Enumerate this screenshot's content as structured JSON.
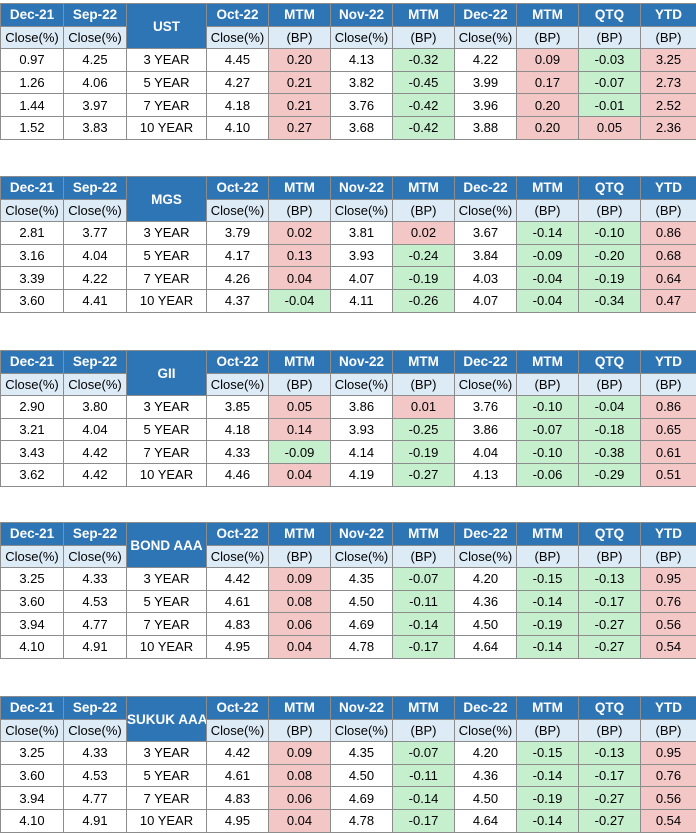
{
  "headers": {
    "top": [
      "Dec-21",
      "Sep-22",
      "Oct-22",
      "MTM",
      "Nov-22",
      "MTM",
      "Dec-22",
      "MTM",
      "QTQ",
      "YTD"
    ],
    "sub": [
      "Close(%)",
      "Close(%)",
      "Close(%)",
      "(BP)",
      "Close(%)",
      "(BP)",
      "Close(%)",
      "(BP)",
      "(BP)",
      "(BP)"
    ]
  },
  "colors": {
    "header_blue": "#2e75b6",
    "subheader_blue": "#ddebf7",
    "rise_red": "#f4c7c7",
    "fall_green": "#c6efce"
  },
  "tables": [
    {
      "label": "UST",
      "rows": [
        {
          "dec21": "0.97",
          "sep22": "4.25",
          "tenor": "3 YEAR",
          "oct22": "4.45",
          "mtm1": "0.20",
          "nov22": "4.13",
          "mtm2": "-0.32",
          "dec22": "4.22",
          "mtm3": "0.09",
          "qtq": "-0.03",
          "ytd": "3.25"
        },
        {
          "dec21": "1.26",
          "sep22": "4.06",
          "tenor": "5 YEAR",
          "oct22": "4.27",
          "mtm1": "0.21",
          "nov22": "3.82",
          "mtm2": "-0.45",
          "dec22": "3.99",
          "mtm3": "0.17",
          "qtq": "-0.07",
          "ytd": "2.73"
        },
        {
          "dec21": "1.44",
          "sep22": "3.97",
          "tenor": "7 YEAR",
          "oct22": "4.18",
          "mtm1": "0.21",
          "nov22": "3.76",
          "mtm2": "-0.42",
          "dec22": "3.96",
          "mtm3": "0.20",
          "qtq": "-0.01",
          "ytd": "2.52"
        },
        {
          "dec21": "1.52",
          "sep22": "3.83",
          "tenor": "10 YEAR",
          "oct22": "4.10",
          "mtm1": "0.27",
          "nov22": "3.68",
          "mtm2": "-0.42",
          "dec22": "3.88",
          "mtm3": "0.20",
          "qtq": "0.05",
          "ytd": "2.36"
        }
      ]
    },
    {
      "label": "MGS",
      "rows": [
        {
          "dec21": "2.81",
          "sep22": "3.77",
          "tenor": "3 YEAR",
          "oct22": "3.79",
          "mtm1": "0.02",
          "nov22": "3.81",
          "mtm2": "0.02",
          "dec22": "3.67",
          "mtm3": "-0.14",
          "qtq": "-0.10",
          "ytd": "0.86"
        },
        {
          "dec21": "3.16",
          "sep22": "4.04",
          "tenor": "5 YEAR",
          "oct22": "4.17",
          "mtm1": "0.13",
          "nov22": "3.93",
          "mtm2": "-0.24",
          "dec22": "3.84",
          "mtm3": "-0.09",
          "qtq": "-0.20",
          "ytd": "0.68"
        },
        {
          "dec21": "3.39",
          "sep22": "4.22",
          "tenor": "7 YEAR",
          "oct22": "4.26",
          "mtm1": "0.04",
          "nov22": "4.07",
          "mtm2": "-0.19",
          "dec22": "4.03",
          "mtm3": "-0.04",
          "qtq": "-0.19",
          "ytd": "0.64"
        },
        {
          "dec21": "3.60",
          "sep22": "4.41",
          "tenor": "10 YEAR",
          "oct22": "4.37",
          "mtm1": "-0.04",
          "nov22": "4.11",
          "mtm2": "-0.26",
          "dec22": "4.07",
          "mtm3": "-0.04",
          "qtq": "-0.34",
          "ytd": "0.47"
        }
      ]
    },
    {
      "label": "GII",
      "rows": [
        {
          "dec21": "2.90",
          "sep22": "3.80",
          "tenor": "3 YEAR",
          "oct22": "3.85",
          "mtm1": "0.05",
          "nov22": "3.86",
          "mtm2": "0.01",
          "dec22": "3.76",
          "mtm3": "-0.10",
          "qtq": "-0.04",
          "ytd": "0.86"
        },
        {
          "dec21": "3.21",
          "sep22": "4.04",
          "tenor": "5 YEAR",
          "oct22": "4.18",
          "mtm1": "0.14",
          "nov22": "3.93",
          "mtm2": "-0.25",
          "dec22": "3.86",
          "mtm3": "-0.07",
          "qtq": "-0.18",
          "ytd": "0.65"
        },
        {
          "dec21": "3.43",
          "sep22": "4.42",
          "tenor": "7 YEAR",
          "oct22": "4.33",
          "mtm1": "-0.09",
          "nov22": "4.14",
          "mtm2": "-0.19",
          "dec22": "4.04",
          "mtm3": "-0.10",
          "qtq": "-0.38",
          "ytd": "0.61"
        },
        {
          "dec21": "3.62",
          "sep22": "4.42",
          "tenor": "10 YEAR",
          "oct22": "4.46",
          "mtm1": "0.04",
          "nov22": "4.19",
          "mtm2": "-0.27",
          "dec22": "4.13",
          "mtm3": "-0.06",
          "qtq": "-0.29",
          "ytd": "0.51"
        }
      ]
    },
    {
      "label": "BOND AAA",
      "rows": [
        {
          "dec21": "3.25",
          "sep22": "4.33",
          "tenor": "3 YEAR",
          "oct22": "4.42",
          "mtm1": "0.09",
          "nov22": "4.35",
          "mtm2": "-0.07",
          "dec22": "4.20",
          "mtm3": "-0.15",
          "qtq": "-0.13",
          "ytd": "0.95"
        },
        {
          "dec21": "3.60",
          "sep22": "4.53",
          "tenor": "5 YEAR",
          "oct22": "4.61",
          "mtm1": "0.08",
          "nov22": "4.50",
          "mtm2": "-0.11",
          "dec22": "4.36",
          "mtm3": "-0.14",
          "qtq": "-0.17",
          "ytd": "0.76"
        },
        {
          "dec21": "3.94",
          "sep22": "4.77",
          "tenor": "7 YEAR",
          "oct22": "4.83",
          "mtm1": "0.06",
          "nov22": "4.69",
          "mtm2": "-0.14",
          "dec22": "4.50",
          "mtm3": "-0.19",
          "qtq": "-0.27",
          "ytd": "0.56"
        },
        {
          "dec21": "4.10",
          "sep22": "4.91",
          "tenor": "10 YEAR",
          "oct22": "4.95",
          "mtm1": "0.04",
          "nov22": "4.78",
          "mtm2": "-0.17",
          "dec22": "4.64",
          "mtm3": "-0.14",
          "qtq": "-0.27",
          "ytd": "0.54"
        }
      ]
    },
    {
      "label": "SUKUK AAA",
      "rows": [
        {
          "dec21": "3.25",
          "sep22": "4.33",
          "tenor": "3 YEAR",
          "oct22": "4.42",
          "mtm1": "0.09",
          "nov22": "4.35",
          "mtm2": "-0.07",
          "dec22": "4.20",
          "mtm3": "-0.15",
          "qtq": "-0.13",
          "ytd": "0.95"
        },
        {
          "dec21": "3.60",
          "sep22": "4.53",
          "tenor": "5 YEAR",
          "oct22": "4.61",
          "mtm1": "0.08",
          "nov22": "4.50",
          "mtm2": "-0.11",
          "dec22": "4.36",
          "mtm3": "-0.14",
          "qtq": "-0.17",
          "ytd": "0.76"
        },
        {
          "dec21": "3.94",
          "sep22": "4.77",
          "tenor": "7 YEAR",
          "oct22": "4.83",
          "mtm1": "0.06",
          "nov22": "4.69",
          "mtm2": "-0.14",
          "dec22": "4.50",
          "mtm3": "-0.19",
          "qtq": "-0.27",
          "ytd": "0.56"
        },
        {
          "dec21": "4.10",
          "sep22": "4.91",
          "tenor": "10 YEAR",
          "oct22": "4.95",
          "mtm1": "0.04",
          "nov22": "4.78",
          "mtm2": "-0.17",
          "dec22": "4.64",
          "mtm3": "-0.14",
          "qtq": "-0.27",
          "ytd": "0.54"
        }
      ]
    }
  ]
}
